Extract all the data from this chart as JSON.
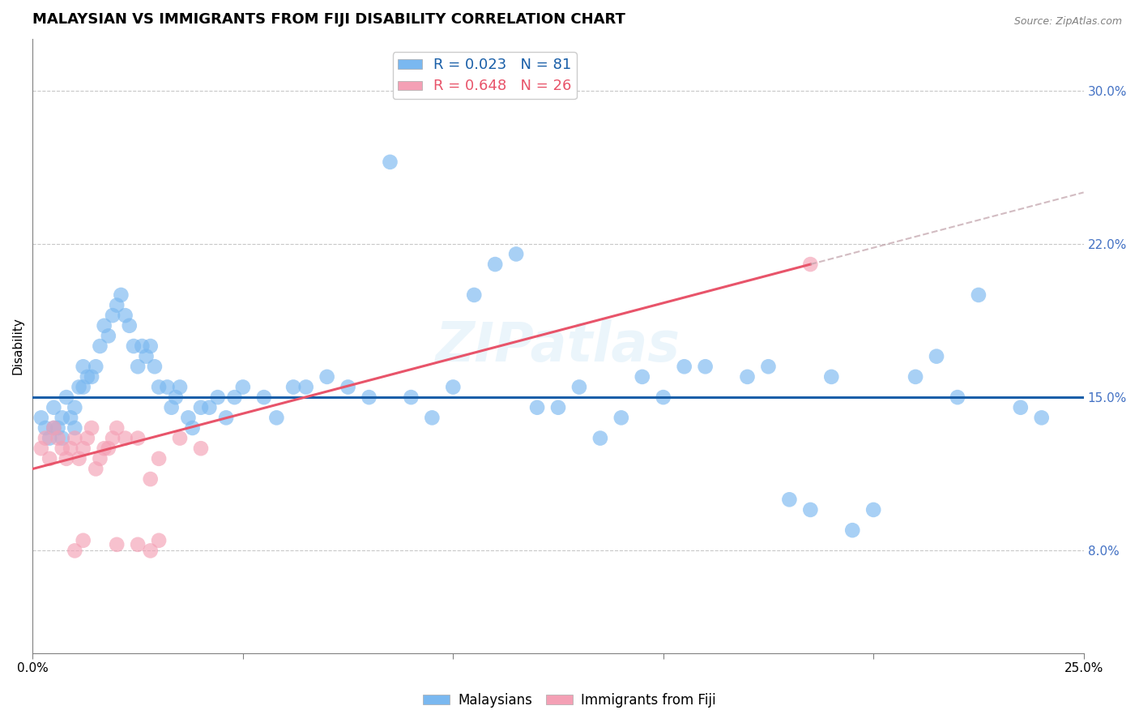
{
  "title": "MALAYSIAN VS IMMIGRANTS FROM FIJI DISABILITY CORRELATION CHART",
  "source": "Source: ZipAtlas.com",
  "ylabel": "Disability",
  "xlim": [
    0.0,
    0.25
  ],
  "ylim": [
    0.025,
    0.325
  ],
  "yticks": [
    0.075,
    0.15,
    0.225,
    0.3
  ],
  "xtick_positions": [
    0.0,
    0.05,
    0.1,
    0.15,
    0.2,
    0.25
  ],
  "xtick_labels": [
    "0.0%",
    "",
    "",
    "",
    "",
    "25.0%"
  ],
  "blue_R": 0.023,
  "blue_N": 81,
  "pink_R": 0.648,
  "pink_N": 26,
  "blue_color": "#7ab8f0",
  "pink_color": "#f4a0b5",
  "blue_line_color": "#1a5fa8",
  "pink_line_color": "#e8546a",
  "dash_color": "#d4a0a8",
  "background_color": "#ffffff",
  "grid_color": "#c8c8c8",
  "title_fontsize": 13,
  "axis_label_fontsize": 11,
  "tick_fontsize": 11,
  "legend_fontsize": 12,
  "watermark": "ZIPatlas",
  "blue_points_x": [
    0.002,
    0.003,
    0.004,
    0.005,
    0.005,
    0.006,
    0.007,
    0.007,
    0.008,
    0.009,
    0.01,
    0.01,
    0.011,
    0.012,
    0.012,
    0.013,
    0.014,
    0.015,
    0.016,
    0.017,
    0.018,
    0.019,
    0.02,
    0.021,
    0.022,
    0.023,
    0.024,
    0.025,
    0.026,
    0.027,
    0.028,
    0.029,
    0.03,
    0.032,
    0.033,
    0.034,
    0.035,
    0.037,
    0.038,
    0.04,
    0.042,
    0.044,
    0.046,
    0.048,
    0.05,
    0.055,
    0.058,
    0.062,
    0.065,
    0.07,
    0.075,
    0.08,
    0.085,
    0.09,
    0.095,
    0.1,
    0.105,
    0.11,
    0.115,
    0.12,
    0.125,
    0.13,
    0.135,
    0.14,
    0.145,
    0.15,
    0.155,
    0.16,
    0.17,
    0.175,
    0.18,
    0.185,
    0.19,
    0.195,
    0.2,
    0.21,
    0.215,
    0.22,
    0.225,
    0.235,
    0.24
  ],
  "blue_points_y": [
    0.14,
    0.135,
    0.13,
    0.145,
    0.135,
    0.135,
    0.13,
    0.14,
    0.15,
    0.14,
    0.135,
    0.145,
    0.155,
    0.165,
    0.155,
    0.16,
    0.16,
    0.165,
    0.175,
    0.185,
    0.18,
    0.19,
    0.195,
    0.2,
    0.19,
    0.185,
    0.175,
    0.165,
    0.175,
    0.17,
    0.175,
    0.165,
    0.155,
    0.155,
    0.145,
    0.15,
    0.155,
    0.14,
    0.135,
    0.145,
    0.145,
    0.15,
    0.14,
    0.15,
    0.155,
    0.15,
    0.14,
    0.155,
    0.155,
    0.16,
    0.155,
    0.15,
    0.265,
    0.15,
    0.14,
    0.155,
    0.2,
    0.215,
    0.22,
    0.145,
    0.145,
    0.155,
    0.13,
    0.14,
    0.16,
    0.15,
    0.165,
    0.165,
    0.16,
    0.165,
    0.1,
    0.095,
    0.16,
    0.085,
    0.095,
    0.16,
    0.17,
    0.15,
    0.2,
    0.145,
    0.14
  ],
  "pink_points_x": [
    0.002,
    0.003,
    0.004,
    0.005,
    0.006,
    0.007,
    0.008,
    0.009,
    0.01,
    0.011,
    0.012,
    0.013,
    0.014,
    0.015,
    0.016,
    0.017,
    0.018,
    0.019,
    0.02,
    0.022,
    0.025,
    0.028,
    0.03,
    0.035,
    0.04,
    0.185
  ],
  "pink_points_y": [
    0.125,
    0.13,
    0.12,
    0.135,
    0.13,
    0.125,
    0.12,
    0.125,
    0.13,
    0.12,
    0.125,
    0.13,
    0.135,
    0.115,
    0.12,
    0.125,
    0.125,
    0.13,
    0.135,
    0.13,
    0.13,
    0.11,
    0.12,
    0.13,
    0.125,
    0.215
  ],
  "pink_extra_x": [
    0.01,
    0.012,
    0.02,
    0.025,
    0.028,
    0.03
  ],
  "pink_extra_y": [
    0.075,
    0.08,
    0.078,
    0.078,
    0.075,
    0.08
  ],
  "blue_line_y_at_0": 0.15,
  "blue_line_y_at_025": 0.15,
  "pink_line_x0": 0.0,
  "pink_line_y0": 0.115,
  "pink_line_x1": 0.185,
  "pink_line_y1": 0.215
}
